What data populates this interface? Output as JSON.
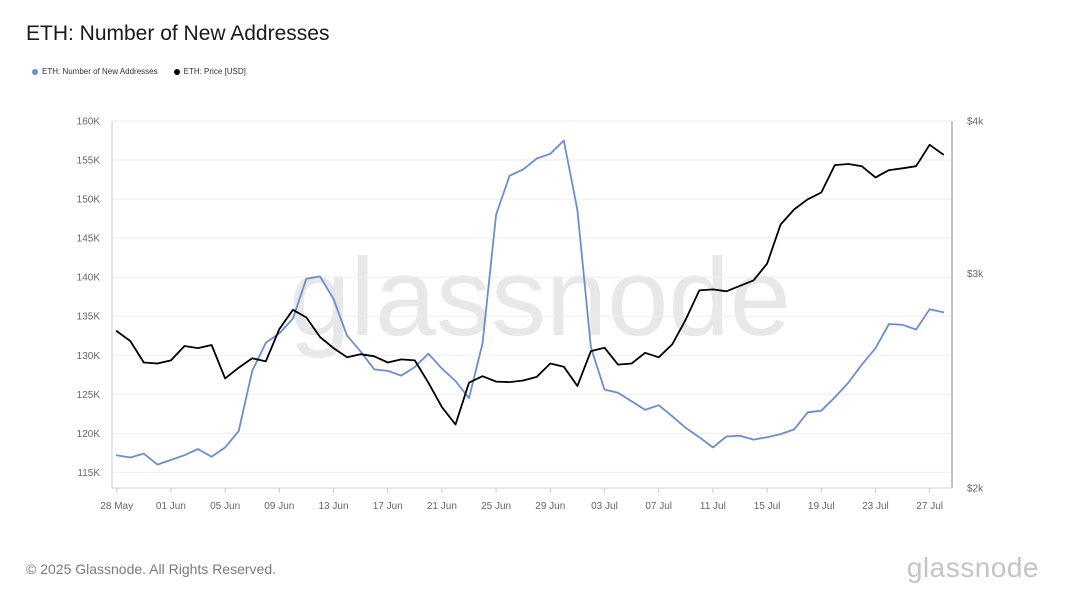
{
  "title": "ETH: Number of New Addresses",
  "footer": "© 2025 Glassnode. All Rights Reserved.",
  "brand": "glassnode",
  "watermark": "glassnode",
  "legend": [
    {
      "label": "ETH: Number of New Addresses",
      "color": "#6a8fd0"
    },
    {
      "label": "ETH: Price [USD]",
      "color": "#000000"
    }
  ],
  "chart_data": {
    "type": "line",
    "x_start": "2025-05-28",
    "x_ticks": [
      "28 May",
      "01 Jun",
      "05 Jun",
      "09 Jun",
      "13 Jun",
      "17 Jun",
      "21 Jun",
      "25 Jun",
      "29 Jun",
      "03 Jul",
      "07 Jul",
      "11 Jul",
      "15 Jul",
      "19 Jul",
      "23 Jul",
      "27 Jul"
    ],
    "y_left_ticks": [
      "115K",
      "120K",
      "125K",
      "130K",
      "135K",
      "140K",
      "145K",
      "150K",
      "155K",
      "160K"
    ],
    "y_left_range": [
      113000,
      160000
    ],
    "y_right_ticks": [
      "$2k",
      "$3k",
      "$4k"
    ],
    "y_right_range": [
      2000,
      4000
    ],
    "y_right_scale": "log",
    "grid": true,
    "series": [
      {
        "name": "ETH: Number of New Addresses",
        "axis": "left",
        "color": "#6a8fd0",
        "values": [
          117200,
          116900,
          117400,
          116000,
          116600,
          117200,
          118000,
          117000,
          118200,
          120300,
          128000,
          131600,
          132800,
          134700,
          139800,
          140100,
          137200,
          132500,
          130500,
          128200,
          128000,
          127400,
          128500,
          130200,
          128300,
          126700,
          124500,
          131500,
          148000,
          153000,
          153800,
          155200,
          155800,
          157500,
          148600,
          131000,
          125600,
          125200,
          124100,
          123000,
          123600,
          122200,
          120700,
          119500,
          118200,
          119600,
          119700,
          119200,
          119500,
          119900,
          120500,
          122700,
          122900,
          124600,
          126500,
          128800,
          130900,
          134000,
          133900,
          133300,
          135900,
          135500
        ]
      },
      {
        "name": "ETH: Price [USD]",
        "axis": "right",
        "color": "#000000",
        "values": [
          2690,
          2640,
          2535,
          2530,
          2545,
          2615,
          2605,
          2620,
          2460,
          2510,
          2555,
          2540,
          2700,
          2800,
          2760,
          2660,
          2605,
          2560,
          2575,
          2565,
          2535,
          2550,
          2545,
          2440,
          2330,
          2255,
          2440,
          2470,
          2445,
          2443,
          2450,
          2467,
          2530,
          2515,
          2425,
          2590,
          2607,
          2525,
          2530,
          2582,
          2560,
          2623,
          2750,
          2905,
          2910,
          2900,
          2930,
          2960,
          3055,
          3290,
          3385,
          3450,
          3495,
          3680,
          3688,
          3672,
          3596,
          3646,
          3658,
          3673,
          3824,
          3755
        ]
      }
    ]
  }
}
